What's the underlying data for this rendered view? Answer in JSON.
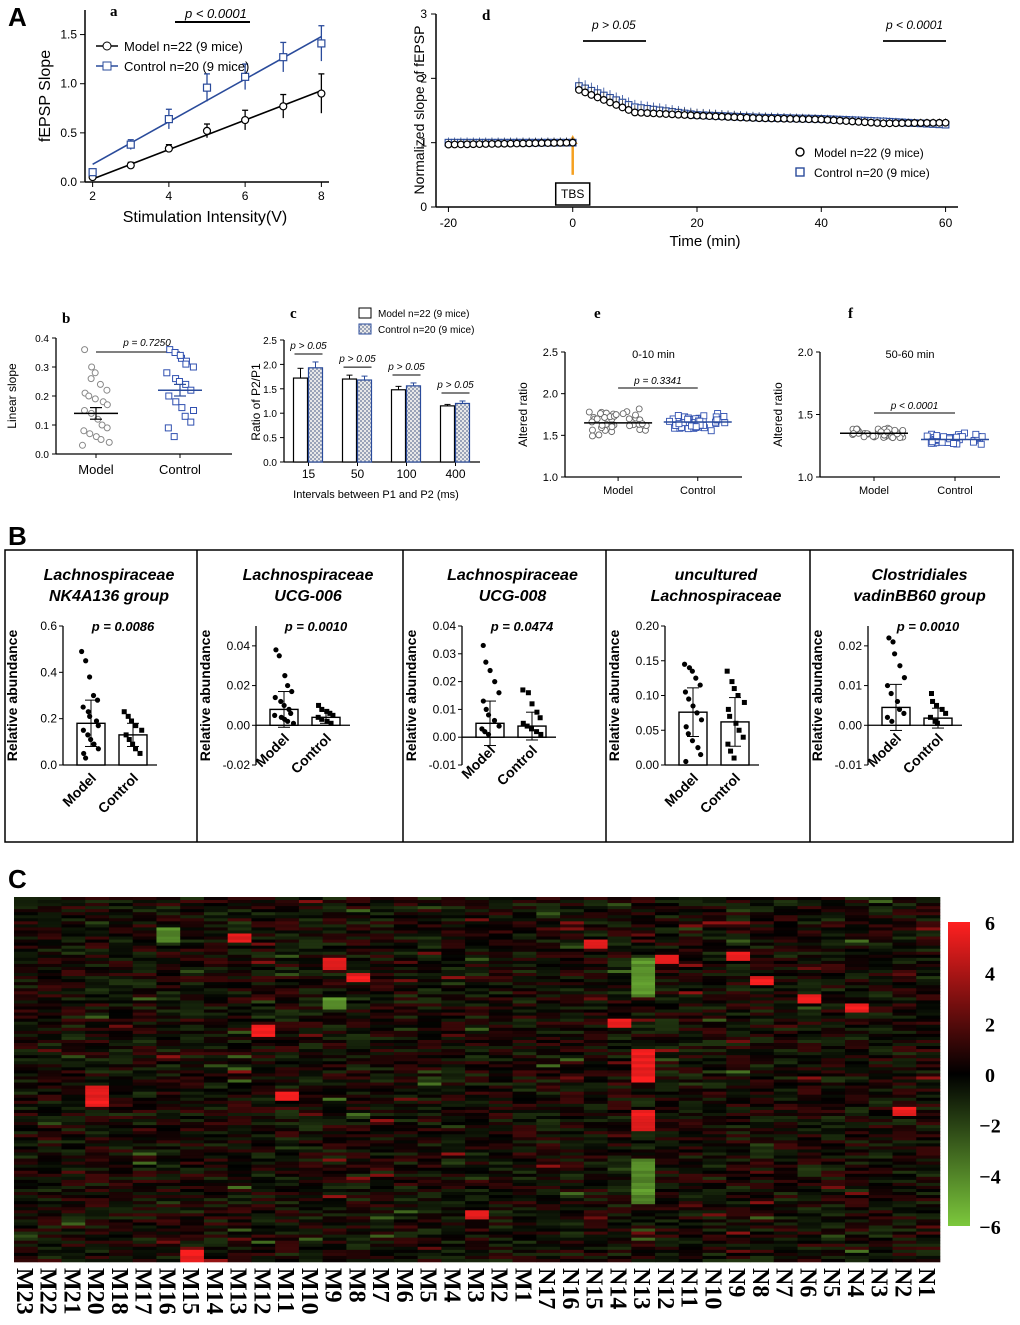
{
  "panel_labels": {
    "A": "A",
    "B": "B",
    "C": "C"
  },
  "chart_data": [
    {
      "id": "a",
      "type": "line",
      "sub_label": "a",
      "title": "p < 0.0001",
      "xlabel": "Stimulation Intensity(V)",
      "ylabel": "fEPSP Slope",
      "xlim": [
        1.8,
        8.2
      ],
      "ylim": [
        0,
        1.75
      ],
      "xticks": [
        2,
        4,
        6,
        8
      ],
      "yticks": [
        0.0,
        0.5,
        1.0,
        1.5
      ],
      "xtick_labels": [
        "2",
        "4",
        "6",
        "8"
      ],
      "ytick_labels": [
        "0.0",
        "0.5",
        "1.0",
        "1.5"
      ],
      "legend": [
        "Model n=22 (9 mice)",
        "Control n=20 (9 mice)"
      ],
      "series": [
        {
          "name": "Model n=22 (9 mice)",
          "color": "#000000",
          "marker": "circle",
          "x": [
            2,
            3,
            4,
            5,
            6,
            7,
            8
          ],
          "values": [
            0.05,
            0.17,
            0.34,
            0.52,
            0.63,
            0.77,
            0.9
          ],
          "err": [
            0.02,
            0.03,
            0.04,
            0.07,
            0.1,
            0.12,
            0.2
          ],
          "fit": [
            [
              2,
              0.03
            ],
            [
              8,
              0.93
            ]
          ]
        },
        {
          "name": "Control n=20 (9 mice)",
          "color": "#2a4b9b",
          "marker": "square",
          "x": [
            2,
            3,
            4,
            5,
            6,
            7,
            8
          ],
          "values": [
            0.1,
            0.38,
            0.64,
            0.96,
            1.07,
            1.27,
            1.41
          ],
          "err": [
            0.03,
            0.05,
            0.1,
            0.14,
            0.13,
            0.15,
            0.18
          ],
          "fit": [
            [
              2,
              0.18
            ],
            [
              8,
              1.48
            ]
          ]
        }
      ]
    },
    {
      "id": "d",
      "type": "scatter",
      "sub_label": "d",
      "annotations": [
        "p > 0.05",
        "p < 0.0001"
      ],
      "arrow_label": "TBS",
      "xlabel": "Time (min)",
      "ylabel": "Normalized slope of fEPSP",
      "xlim": [
        -22,
        62
      ],
      "ylim": [
        0,
        3
      ],
      "xticks": [
        -20,
        0,
        20,
        40,
        60
      ],
      "yticks": [
        0,
        1,
        2,
        3
      ],
      "xtick_labels": [
        "-20",
        "0",
        "20",
        "40",
        "60"
      ],
      "ytick_labels": [
        "0",
        "1",
        "2",
        "3"
      ],
      "legend": [
        "Model n=22 (9 mice)",
        "Control n=20 (9 mice)"
      ],
      "series": [
        {
          "name": "Model n=22 (9 mice)",
          "color": "#000000",
          "marker": "circle",
          "x": [
            -20,
            0,
            1,
            10,
            20,
            30,
            40,
            50,
            60
          ],
          "values": [
            0.97,
            1.0,
            1.82,
            1.47,
            1.42,
            1.38,
            1.36,
            1.3,
            1.31
          ]
        },
        {
          "name": "Control n=20 (9 mice)",
          "color": "#2a4b9b",
          "marker": "square",
          "x": [
            -20,
            0,
            1,
            10,
            20,
            30,
            40,
            50,
            60
          ],
          "values": [
            1.0,
            1.0,
            1.88,
            1.55,
            1.43,
            1.39,
            1.37,
            1.33,
            1.28
          ]
        }
      ]
    },
    {
      "id": "b",
      "type": "scatter",
      "sub_label": "b",
      "annotation": "p = 0.7250",
      "xlabel": "",
      "ylabel": "Linear slope",
      "ylim": [
        0,
        0.4
      ],
      "yticks": [
        0.0,
        0.1,
        0.2,
        0.3,
        0.4
      ],
      "ytick_labels": [
        "0.0",
        "0.1",
        "0.2",
        "0.3",
        "0.4"
      ],
      "categories": [
        "Model",
        "Control"
      ],
      "series": [
        {
          "name": "Model",
          "mean": 0.14,
          "sem": 0.02,
          "values": [
            0.36,
            0.3,
            0.28,
            0.24,
            0.22,
            0.21,
            0.2,
            0.19,
            0.18,
            0.17,
            0.15,
            0.14,
            0.12,
            0.1,
            0.09,
            0.08,
            0.07,
            0.06,
            0.05,
            0.04,
            0.03,
            0.26
          ]
        },
        {
          "name": "Control",
          "mean": 0.22,
          "sem": 0.02,
          "values": [
            0.36,
            0.35,
            0.33,
            0.32,
            0.3,
            0.28,
            0.26,
            0.25,
            0.24,
            0.22,
            0.2,
            0.18,
            0.16,
            0.13,
            0.11,
            0.09,
            0.06,
            0.34,
            0.31,
            0.15
          ]
        }
      ]
    },
    {
      "id": "c",
      "type": "bar",
      "sub_label": "c",
      "xlabel": "Intervals between P1 and P2 (ms)",
      "ylabel": "Ratio of P2/P1",
      "ylim": [
        0,
        2.5
      ],
      "yticks": [
        0.0,
        0.5,
        1.0,
        1.5,
        2.0,
        2.5
      ],
      "ytick_labels": [
        "0.0",
        "0.5",
        "1.0",
        "1.5",
        "2.0",
        "2.5"
      ],
      "categories": [
        "15",
        "50",
        "100",
        "400"
      ],
      "annotations": [
        "p > 0.05",
        "p > 0.05",
        "p > 0.05",
        "p > 0.05"
      ],
      "legend": [
        "Model n=22 (9 mice)",
        "Control n=20 (9 mice)"
      ],
      "series": [
        {
          "name": "Model n=22 (9 mice)",
          "values": [
            1.72,
            1.7,
            1.48,
            1.15
          ],
          "err": [
            0.2,
            0.08,
            0.07,
            0.03
          ]
        },
        {
          "name": "Control n=20 (9 mice)",
          "values": [
            1.93,
            1.68,
            1.56,
            1.2
          ],
          "err": [
            0.12,
            0.08,
            0.06,
            0.05
          ]
        }
      ]
    },
    {
      "id": "e",
      "type": "scatter",
      "sub_label": "e",
      "subtitle": "0-10 min",
      "annotation": "p = 0.3341",
      "xlabel": "",
      "ylabel": "Altered ratio",
      "ylim": [
        1.0,
        2.5
      ],
      "yticks": [
        1.0,
        1.5,
        2.0,
        2.5
      ],
      "ytick_labels": [
        "1.0",
        "1.5",
        "2.0",
        "2.5"
      ],
      "categories": [
        "Model",
        "Control"
      ],
      "series": [
        {
          "name": "Model",
          "mean": 1.65,
          "spread": [
            1.5,
            1.9
          ]
        },
        {
          "name": "Control",
          "mean": 1.66,
          "spread": [
            1.54,
            1.85
          ]
        }
      ]
    },
    {
      "id": "f",
      "type": "scatter",
      "sub_label": "f",
      "subtitle": "50-60 min",
      "annotation": "p < 0.0001",
      "xlabel": "",
      "ylabel": "Altered ratio",
      "ylim": [
        1.0,
        2.0
      ],
      "yticks": [
        1.0,
        1.5,
        2.0
      ],
      "ytick_labels": [
        "1.0",
        "1.5",
        "2.0"
      ],
      "categories": [
        "Model",
        "Control"
      ],
      "series": [
        {
          "name": "Model",
          "mean": 1.35,
          "spread": [
            1.3,
            1.4
          ]
        },
        {
          "name": "Control",
          "mean": 1.3,
          "spread": [
            1.24,
            1.35
          ]
        }
      ]
    },
    {
      "id": "B1",
      "type": "bar",
      "title": [
        "Lachnospiraceae",
        "NK4A136 group"
      ],
      "annotation": "p = 0.0086",
      "ylabel": "Relative abundance",
      "ylim": [
        0,
        0.6
      ],
      "yticks": [
        0.0,
        0.2,
        0.4,
        0.6
      ],
      "ytick_labels": [
        "0.0",
        "0.2",
        "0.4",
        "0.6"
      ],
      "categories": [
        "Model",
        "Control"
      ],
      "values": [
        0.18,
        0.13
      ],
      "err": [
        0.1,
        0.05
      ],
      "points": [
        [
          0.49,
          0.45,
          0.38,
          0.3,
          0.28,
          0.25,
          0.23,
          0.21,
          0.19,
          0.17,
          0.15,
          0.13,
          0.11,
          0.09,
          0.07,
          0.05,
          0.03
        ],
        [
          0.23,
          0.21,
          0.19,
          0.17,
          0.15,
          0.13,
          0.11,
          0.09,
          0.07,
          0.05
        ]
      ]
    },
    {
      "id": "B2",
      "type": "bar",
      "title": [
        "Lachnospiraceae",
        "UCG-006"
      ],
      "annotation": "p = 0.0010",
      "ylabel": "Relative abundance",
      "ylim": [
        -0.02,
        0.05
      ],
      "yticks": [
        -0.02,
        0.0,
        0.02,
        0.04
      ],
      "ytick_labels": [
        "-0.02",
        "0.00",
        "0.02",
        "0.04"
      ],
      "categories": [
        "Model",
        "Control"
      ],
      "values": [
        0.008,
        0.004
      ],
      "err": [
        0.009,
        0.003
      ],
      "points": [
        [
          0.038,
          0.035,
          0.025,
          0.02,
          0.017,
          0.014,
          0.012,
          0.01,
          0.008,
          0.006,
          0.005,
          0.004,
          0.003,
          0.002,
          0.001
        ],
        [
          0.01,
          0.008,
          0.007,
          0.006,
          0.005,
          0.004,
          0.003,
          0.002,
          0.001
        ]
      ]
    },
    {
      "id": "B3",
      "type": "bar",
      "title": [
        "Lachnospiraceae",
        "UCG-008"
      ],
      "annotation": "p = 0.0474",
      "ylabel": "Relative abundance",
      "ylim": [
        -0.01,
        0.04
      ],
      "yticks": [
        -0.01,
        0.0,
        0.01,
        0.02,
        0.03,
        0.04
      ],
      "ytick_labels": [
        "-0.01",
        "0.00",
        "0.01",
        "0.02",
        "0.03",
        "0.04"
      ],
      "categories": [
        "Model",
        "Control"
      ],
      "values": [
        0.005,
        0.004
      ],
      "err": [
        0.008,
        0.005
      ],
      "points": [
        [
          0.033,
          0.027,
          0.024,
          0.02,
          0.016,
          0.013,
          0.01,
          0.008,
          0.006,
          0.004,
          0.003,
          0.002,
          0.001
        ],
        [
          0.017,
          0.016,
          0.012,
          0.009,
          0.007,
          0.005,
          0.004,
          0.003,
          0.002,
          0.001
        ]
      ]
    },
    {
      "id": "B4",
      "type": "bar",
      "title": [
        "uncultured",
        "Lachnospiraceae"
      ],
      "annotation": "",
      "ylabel": "Relative abundance",
      "ylim": [
        0,
        0.2
      ],
      "yticks": [
        0.0,
        0.05,
        0.1,
        0.15,
        0.2
      ],
      "ytick_labels": [
        "0.00",
        "0.05",
        "0.10",
        "0.15",
        "0.20"
      ],
      "categories": [
        "Model",
        "Control"
      ],
      "values": [
        0.076,
        0.062
      ],
      "err": [
        0.035,
        0.035
      ],
      "points": [
        [
          0.145,
          0.14,
          0.135,
          0.125,
          0.115,
          0.105,
          0.095,
          0.085,
          0.075,
          0.065,
          0.055,
          0.045,
          0.035,
          0.025,
          0.015,
          0.005
        ],
        [
          0.135,
          0.12,
          0.11,
          0.1,
          0.09,
          0.08,
          0.07,
          0.06,
          0.05,
          0.04,
          0.03,
          0.02,
          0.01
        ]
      ]
    },
    {
      "id": "B5",
      "type": "bar",
      "title": [
        "Clostridiales",
        "vadinBB60 group"
      ],
      "annotation": "p = 0.0010",
      "ylabel": "Relative abundance",
      "ylim": [
        -0.01,
        0.025
      ],
      "yticks": [
        -0.01,
        0.0,
        0.01,
        0.02
      ],
      "ytick_labels": [
        "-0.01",
        "0.00",
        "0.01",
        "0.02"
      ],
      "categories": [
        "Model",
        "Control"
      ],
      "values": [
        0.0045,
        0.0018
      ],
      "err": [
        0.0058,
        0.0025
      ],
      "points": [
        [
          0.022,
          0.021,
          0.018,
          0.015,
          0.012,
          0.01,
          0.008,
          0.006,
          0.004,
          0.003,
          0.002,
          0.001
        ],
        [
          0.008,
          0.006,
          0.005,
          0.004,
          0.003,
          0.002,
          0.001,
          0.0005
        ]
      ]
    },
    {
      "id": "C",
      "type": "heatmap",
      "columns": [
        "M23",
        "M22",
        "M21",
        "M20",
        "M18",
        "M17",
        "M16",
        "M15",
        "M14",
        "M13",
        "M12",
        "M11",
        "M10",
        "M9",
        "M8",
        "M7",
        "M6",
        "M5",
        "M4",
        "M3",
        "M2",
        "M1",
        "N17",
        "N16",
        "N15",
        "N14",
        "N13",
        "N12",
        "N11",
        "N10",
        "N9",
        "N8",
        "N7",
        "N6",
        "N5",
        "N4",
        "N3",
        "N2",
        "N1"
      ],
      "colorbar": {
        "min": -6,
        "max": 6,
        "ticks": [
          6,
          4,
          2,
          0,
          -2,
          -4,
          -6
        ],
        "tick_labels": [
          "6",
          "4",
          "2",
          "0",
          "−2",
          "−4",
          "−6"
        ],
        "colors": {
          "high": "#ff2020",
          "mid": "#000000",
          "low": "#7cc83c"
        }
      }
    }
  ]
}
